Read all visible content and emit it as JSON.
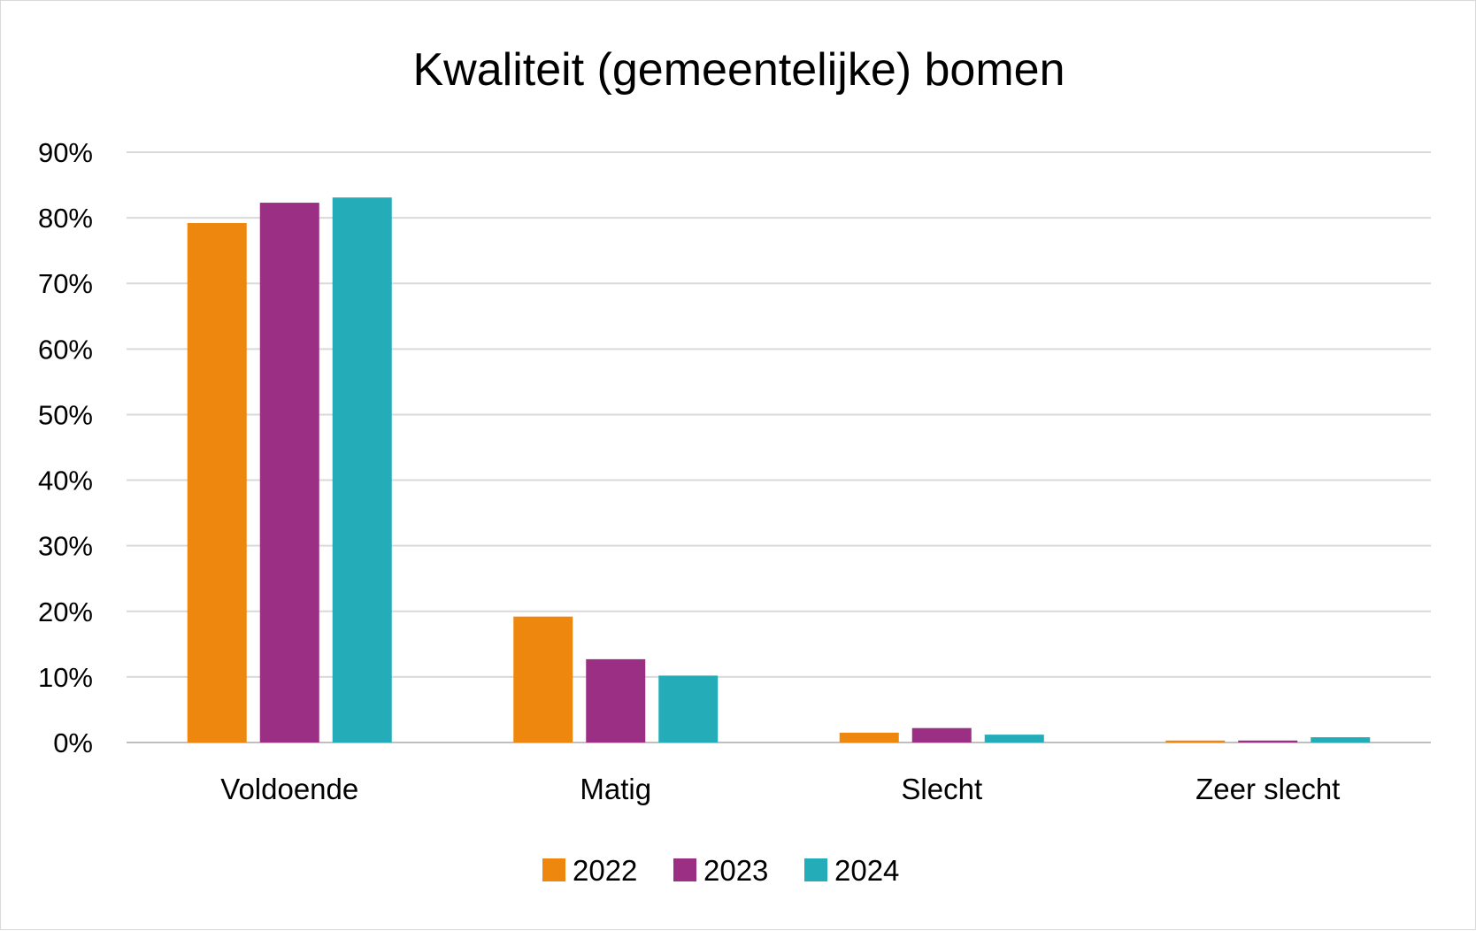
{
  "chart_data": {
    "type": "bar",
    "title": "Kwaliteit (gemeentelijke) bomen",
    "categories": [
      "Voldoende",
      "Matig",
      "Slecht",
      "Zeer slecht"
    ],
    "series": [
      {
        "name": "2022",
        "color": "#EE870E",
        "values": [
          79.2,
          19.2,
          1.5,
          0.3
        ]
      },
      {
        "name": "2023",
        "color": "#9B2F83",
        "values": [
          82.3,
          12.7,
          2.2,
          0.3
        ]
      },
      {
        "name": "2024",
        "color": "#24ADB8",
        "values": [
          83.1,
          10.2,
          1.2,
          0.8
        ]
      }
    ],
    "ylim": [
      0,
      90
    ],
    "yticks": [
      0,
      10,
      20,
      30,
      40,
      50,
      60,
      70,
      80,
      90
    ],
    "ytick_labels": [
      "0%",
      "10%",
      "20%",
      "30%",
      "40%",
      "50%",
      "60%",
      "70%",
      "80%",
      "90%"
    ],
    "grid": true,
    "legend": "bottom-center"
  }
}
